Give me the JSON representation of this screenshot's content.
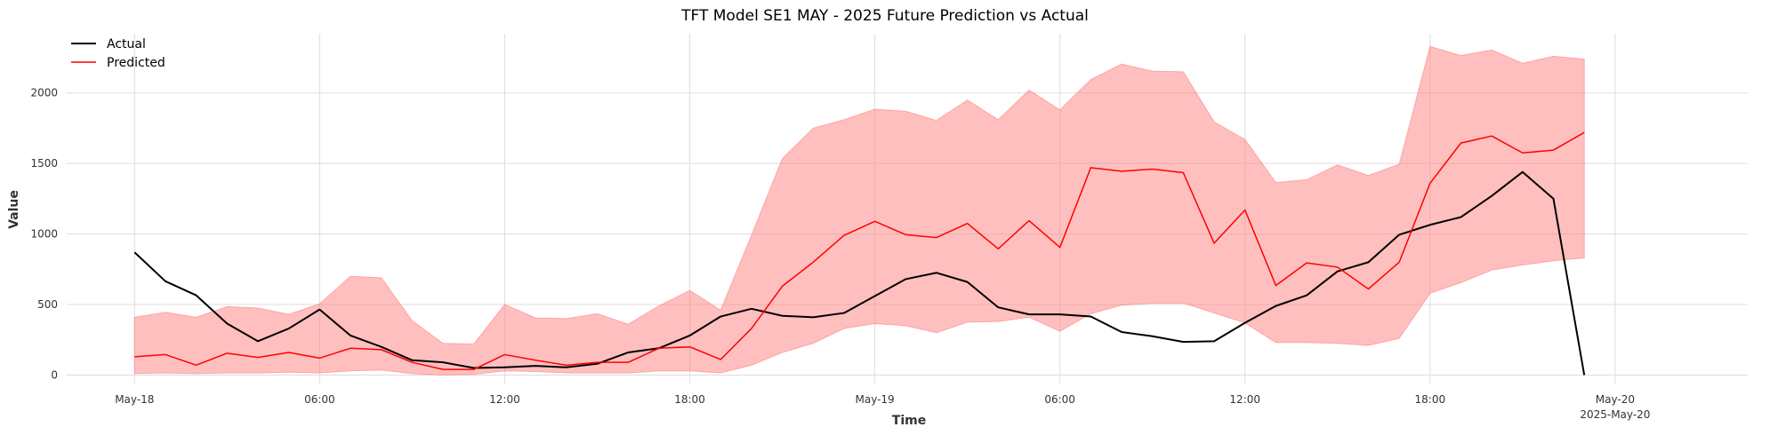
{
  "chart_data": {
    "type": "line",
    "title": "TFT Model SE1 MAY - 2025 Future Prediction vs Actual",
    "xlabel": "Time",
    "ylabel": "Value",
    "x_unit": "hours since 2025-05-18 00:00",
    "xlim": [
      -2.2,
      52.3
    ],
    "ylim": [
      -60,
      2420
    ],
    "grid": true,
    "legend_position": "top-left",
    "x_ticks": [
      {
        "x": 0,
        "label": "May-18",
        "sublabel": ""
      },
      {
        "x": 6,
        "label": "06:00",
        "sublabel": ""
      },
      {
        "x": 12,
        "label": "12:00",
        "sublabel": ""
      },
      {
        "x": 18,
        "label": "18:00",
        "sublabel": ""
      },
      {
        "x": 24,
        "label": "May-19",
        "sublabel": ""
      },
      {
        "x": 30,
        "label": "06:00",
        "sublabel": ""
      },
      {
        "x": 36,
        "label": "12:00",
        "sublabel": ""
      },
      {
        "x": 42,
        "label": "18:00",
        "sublabel": ""
      },
      {
        "x": 48,
        "label": "May-20",
        "sublabel": "2025-May-20"
      }
    ],
    "y_ticks": [
      0,
      500,
      1000,
      1500,
      2000
    ],
    "x": [
      0,
      1,
      2,
      3,
      4,
      5,
      6,
      7,
      8,
      9,
      10,
      11,
      12,
      13,
      14,
      15,
      16,
      17,
      18,
      19,
      20,
      21,
      22,
      23,
      24,
      25,
      26,
      27,
      28,
      29,
      30,
      31,
      32,
      33,
      34,
      35,
      36,
      37,
      38,
      39,
      40,
      41,
      42,
      43,
      44,
      45,
      46,
      47
    ],
    "series": [
      {
        "name": "Actual",
        "color": "#000000",
        "values": [
          870,
          665,
          565,
          365,
          240,
          330,
          465,
          280,
          200,
          105,
          90,
          50,
          55,
          65,
          55,
          80,
          160,
          190,
          280,
          415,
          470,
          420,
          410,
          440,
          560,
          680,
          725,
          660,
          480,
          430,
          430,
          415,
          305,
          275,
          235,
          240,
          370,
          490,
          565,
          735,
          800,
          995,
          1065,
          1120,
          1270,
          1440,
          1250,
          0
        ]
      },
      {
        "name": "Predicted",
        "color": "#ff0000",
        "values": [
          130,
          145,
          70,
          155,
          125,
          160,
          120,
          190,
          180,
          90,
          40,
          40,
          145,
          105,
          70,
          90,
          90,
          190,
          200,
          110,
          330,
          630,
          800,
          990,
          1090,
          995,
          975,
          1075,
          895,
          1095,
          905,
          1470,
          1445,
          1460,
          1435,
          935,
          1170,
          635,
          795,
          765,
          610,
          800,
          1360,
          1645,
          1695,
          1575,
          1595,
          1720
        ],
        "band": {
          "color": "#ff8080",
          "lower": [
            10,
            15,
            10,
            15,
            15,
            20,
            15,
            30,
            35,
            10,
            0,
            5,
            30,
            25,
            15,
            15,
            15,
            30,
            30,
            15,
            70,
            160,
            225,
            330,
            365,
            350,
            300,
            375,
            380,
            410,
            310,
            435,
            495,
            510,
            510,
            440,
            370,
            230,
            230,
            225,
            210,
            260,
            580,
            655,
            745,
            780,
            810,
            830
          ],
          "upper": [
            410,
            445,
            410,
            485,
            475,
            430,
            505,
            700,
            690,
            385,
            225,
            220,
            500,
            405,
            400,
            435,
            360,
            490,
            600,
            460,
            990,
            1535,
            1750,
            1810,
            1885,
            1870,
            1805,
            1950,
            1810,
            2020,
            1880,
            2095,
            2205,
            2155,
            2150,
            1795,
            1670,
            1365,
            1385,
            1490,
            1415,
            1495,
            2330,
            2265,
            2305,
            2210,
            2260,
            2240
          ]
        }
      }
    ]
  }
}
